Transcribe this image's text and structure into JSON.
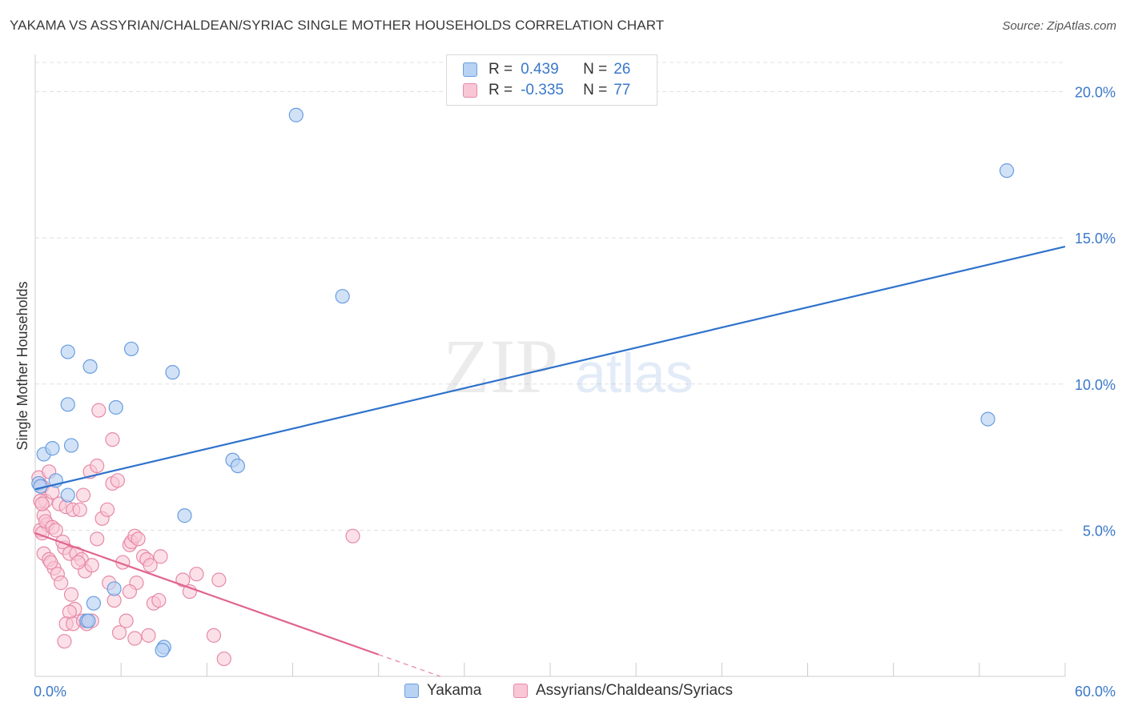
{
  "header": {
    "title": "YAKAMA VS ASSYRIAN/CHALDEAN/SYRIAC SINGLE MOTHER HOUSEHOLDS CORRELATION CHART",
    "source": "Source: ZipAtlas.com"
  },
  "watermark": {
    "zip": "ZIP",
    "atlas": "atlas"
  },
  "colors": {
    "yakama_fill": "#b8d2f3",
    "yakama_stroke": "#6a9de0",
    "yakama_line": "#2f72cc",
    "assyrian_fill": "#f9c6d6",
    "assyrian_stroke": "#e68aa8",
    "assyrian_line": "#e0648f",
    "tick_label": "#3a78c9",
    "grid": "#e0e0e0"
  },
  "legend": {
    "rows": [
      {
        "r_label": "R =",
        "r_value": "0.439",
        "n_label": "N =",
        "n_value": "26"
      },
      {
        "r_label": "R =",
        "r_value": "-0.335",
        "n_label": "N =",
        "n_value": "77"
      }
    ]
  },
  "bottom_legend": {
    "items": [
      {
        "label": "Yakama"
      },
      {
        "label": "Assyrians/Chaldeans/Syriacs"
      }
    ]
  },
  "chart_data": {
    "type": "scatter",
    "title": "YAKAMA VS ASSYRIAN/CHALDEAN/SYRIAC SINGLE MOTHER HOUSEHOLDS CORRELATION CHART",
    "xlabel": "",
    "ylabel": "Single Mother Households",
    "xlim": [
      0,
      60
    ],
    "ylim": [
      0,
      21
    ],
    "x_tick_labels": [
      {
        "value": 0,
        "label": "0.0%"
      },
      {
        "value": 60,
        "label": "60.0%"
      }
    ],
    "y_tick_labels": [
      {
        "value": 5,
        "label": "5.0%"
      },
      {
        "value": 10,
        "label": "10.0%"
      },
      {
        "value": 15,
        "label": "15.0%"
      },
      {
        "value": 20,
        "label": "20.0%"
      }
    ],
    "grid": true,
    "legend_position": "top-center",
    "series": [
      {
        "name": "Yakama",
        "r": 0.439,
        "n": 26,
        "trend": {
          "x": [
            0,
            60
          ],
          "y": [
            6.4,
            14.7
          ],
          "dashed_from": null
        },
        "points": [
          [
            0.2,
            6.6
          ],
          [
            0.5,
            7.6
          ],
          [
            1.0,
            7.8
          ],
          [
            1.2,
            6.7
          ],
          [
            2.1,
            7.9
          ],
          [
            1.9,
            9.3
          ],
          [
            1.9,
            6.2
          ],
          [
            1.9,
            11.1
          ],
          [
            3.2,
            10.6
          ],
          [
            4.7,
            9.2
          ],
          [
            5.6,
            11.2
          ],
          [
            8.0,
            10.4
          ],
          [
            8.7,
            5.5
          ],
          [
            11.5,
            7.4
          ],
          [
            11.8,
            7.2
          ],
          [
            15.2,
            19.2
          ],
          [
            17.9,
            13.0
          ],
          [
            3.4,
            2.5
          ],
          [
            4.6,
            3.0
          ],
          [
            3.0,
            1.9
          ],
          [
            3.1,
            1.9
          ],
          [
            7.5,
            1.0
          ],
          [
            7.4,
            0.9
          ],
          [
            55.5,
            8.8
          ],
          [
            56.6,
            17.3
          ],
          [
            0.3,
            6.5
          ]
        ]
      },
      {
        "name": "Assyrians/Chaldeans/Syriacs",
        "r": -0.335,
        "n": 77,
        "trend": {
          "x": [
            0,
            26
          ],
          "y": [
            4.9,
            -0.5
          ],
          "dashed_from": 20
        },
        "points": [
          [
            0.2,
            6.8
          ],
          [
            0.4,
            6.5
          ],
          [
            0.6,
            6.0
          ],
          [
            0.8,
            7.0
          ],
          [
            0.3,
            6.0
          ],
          [
            0.5,
            5.5
          ],
          [
            0.7,
            5.2
          ],
          [
            0.3,
            5.0
          ],
          [
            0.4,
            4.9
          ],
          [
            0.6,
            5.3
          ],
          [
            1.0,
            5.1
          ],
          [
            1.2,
            5.0
          ],
          [
            0.5,
            4.2
          ],
          [
            0.8,
            4.0
          ],
          [
            1.1,
            3.7
          ],
          [
            1.3,
            3.5
          ],
          [
            1.5,
            3.2
          ],
          [
            1.7,
            4.4
          ],
          [
            1.4,
            5.9
          ],
          [
            1.8,
            5.8
          ],
          [
            2.2,
            5.7
          ],
          [
            2.6,
            5.7
          ],
          [
            2.0,
            4.2
          ],
          [
            2.4,
            4.2
          ],
          [
            2.7,
            4.0
          ],
          [
            2.9,
            3.6
          ],
          [
            3.3,
            3.8
          ],
          [
            3.6,
            4.7
          ],
          [
            3.9,
            5.4
          ],
          [
            3.2,
            7.0
          ],
          [
            3.6,
            7.2
          ],
          [
            4.2,
            5.7
          ],
          [
            4.5,
            6.6
          ],
          [
            4.8,
            6.7
          ],
          [
            3.7,
            9.1
          ],
          [
            4.5,
            8.1
          ],
          [
            4.3,
            3.2
          ],
          [
            5.1,
            3.9
          ],
          [
            5.5,
            4.5
          ],
          [
            5.6,
            4.6
          ],
          [
            5.8,
            4.8
          ],
          [
            6.0,
            4.7
          ],
          [
            6.3,
            4.1
          ],
          [
            6.5,
            4.0
          ],
          [
            5.9,
            3.2
          ],
          [
            5.5,
            2.9
          ],
          [
            6.9,
            2.5
          ],
          [
            7.2,
            2.6
          ],
          [
            7.3,
            4.1
          ],
          [
            8.6,
            3.3
          ],
          [
            9.0,
            2.9
          ],
          [
            9.4,
            3.5
          ],
          [
            10.7,
            3.3
          ],
          [
            2.1,
            2.8
          ],
          [
            2.3,
            2.3
          ],
          [
            2.0,
            2.2
          ],
          [
            1.8,
            1.8
          ],
          [
            2.2,
            1.8
          ],
          [
            2.8,
            1.9
          ],
          [
            3.0,
            1.8
          ],
          [
            3.3,
            1.9
          ],
          [
            1.7,
            1.2
          ],
          [
            4.6,
            2.6
          ],
          [
            5.3,
            1.9
          ],
          [
            5.8,
            1.3
          ],
          [
            6.6,
            1.4
          ],
          [
            10.4,
            1.4
          ],
          [
            11.0,
            0.6
          ],
          [
            18.5,
            4.8
          ],
          [
            0.9,
            3.9
          ],
          [
            1.6,
            4.6
          ],
          [
            2.5,
            3.9
          ],
          [
            0.4,
            5.9
          ],
          [
            1.0,
            6.3
          ],
          [
            2.8,
            6.2
          ],
          [
            4.9,
            1.5
          ],
          [
            6.7,
            3.8
          ]
        ]
      }
    ]
  }
}
